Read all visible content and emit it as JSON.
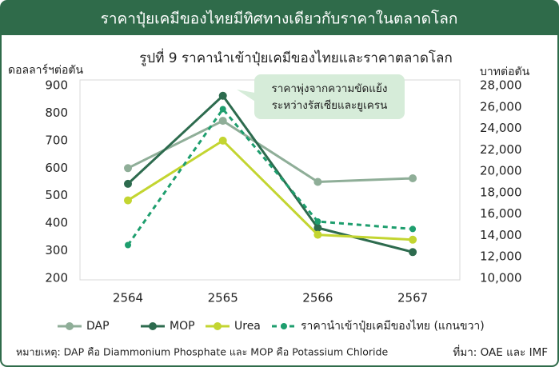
{
  "header": {
    "title": "ราคาปุ๋ยเคมีของไทยมีทิศทางเดียวกับราคาในตลาดโลก"
  },
  "chart_data": {
    "type": "line",
    "title": "รูปที่ 9 ราคานำเข้าปุ๋ยเคมีของไทยและราคาตลาดโลก",
    "y_label": "ดอลลาร์ฯต่อตัน",
    "y2_label": "บาทต่อตัน",
    "categories": [
      "2564",
      "2565",
      "2566",
      "2567"
    ],
    "series": [
      {
        "name": "DAP",
        "color": "#8fae98",
        "style": "solid",
        "values": [
          600,
          772,
          550,
          563
        ]
      },
      {
        "name": "MOP",
        "color": "#2d6b4e",
        "style": "solid",
        "values": [
          543,
          863,
          383,
          295
        ]
      },
      {
        "name": "Urea",
        "color": "#c3d531",
        "style": "solid",
        "values": [
          483,
          700,
          358,
          340
        ]
      },
      {
        "name": "ราคานำเข้าปุ๋ยเคมีของไทย (แกนขวา)",
        "color": "#1e9e6e",
        "style": "dashed",
        "axis": "y2",
        "values": [
          13100,
          25800,
          15300,
          14600
        ]
      }
    ],
    "ylim": [
      200,
      900
    ],
    "yticks": [
      200,
      300,
      400,
      500,
      600,
      700,
      800,
      900
    ],
    "y2lim": [
      10000,
      28000
    ],
    "y2ticks": [
      {
        "value": 10000,
        "label": "10,000"
      },
      {
        "value": 12000,
        "label": "12,000"
      },
      {
        "value": 14000,
        "label": "14,000"
      },
      {
        "value": 16000,
        "label": "16,000"
      },
      {
        "value": 18000,
        "label": "18,000"
      },
      {
        "value": 20000,
        "label": "20,000"
      },
      {
        "value": 22000,
        "label": "22,000"
      },
      {
        "value": 24000,
        "label": "24,000"
      },
      {
        "value": 26000,
        "label": "26,000"
      },
      {
        "value": 28000,
        "label": "28,000"
      }
    ],
    "annotation": [
      "ราคาพุ่งจากความขัดแย้ง",
      "ระหว่างรัสเซียและยูเครน"
    ],
    "grid": false,
    "legend": "bottom"
  },
  "footer": {
    "note": "หมายเหตุ: DAP คือ Diammonium Phosphate และ MOP คือ Potassium Chloride",
    "source": "ที่มา: OAE และ IMF"
  }
}
